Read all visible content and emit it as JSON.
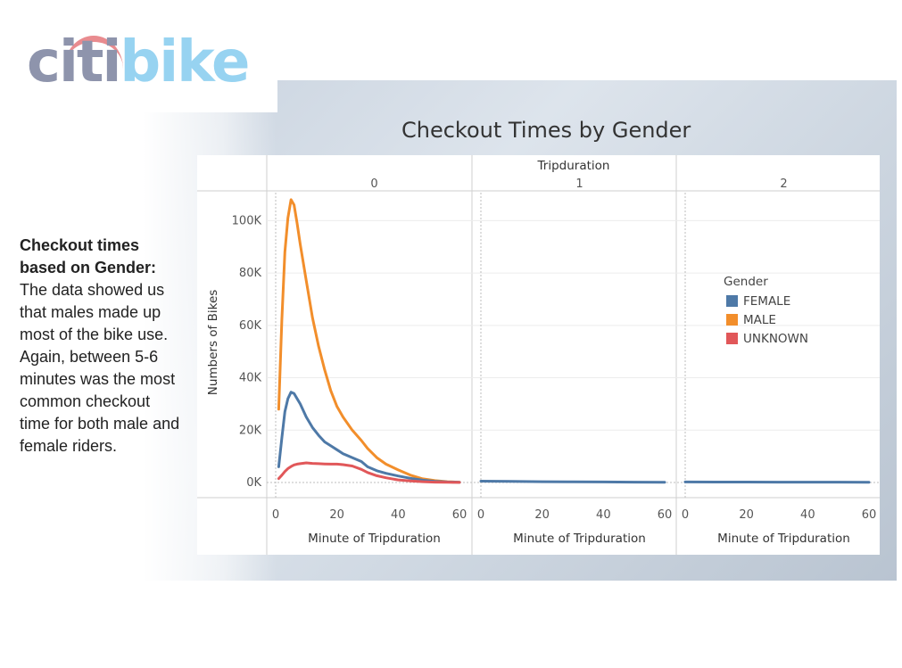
{
  "logo": {
    "part1": "citi",
    "part2": "bike"
  },
  "sidebar": {
    "heading": "Checkout times based on Gender:",
    "body": "The data showed us that males made up most of the bike use. Again, between 5-6 minutes was the most common checkout time for both male and female riders."
  },
  "colors": {
    "female": "#4e79a7",
    "male": "#f28e2b",
    "unknown": "#e15759",
    "logo_gray": "#8e94ac",
    "logo_blue": "#97d3f1",
    "logo_arc": "#e98b8f"
  },
  "chart_data": {
    "type": "line",
    "title": "Checkout Times by Gender",
    "column_header": "Tripduration",
    "panels": [
      "0",
      "1",
      "2"
    ],
    "xlabel": "Minute of Tripduration",
    "ylabel": "Numbers of Bikes",
    "xlim": [
      0,
      60
    ],
    "ylim": [
      0,
      110000
    ],
    "x_ticks": [
      "0",
      "20",
      "40",
      "60"
    ],
    "y_ticks": [
      {
        "value": 0,
        "label": "0K"
      },
      {
        "value": 20000,
        "label": "20K"
      },
      {
        "value": 40000,
        "label": "40K"
      },
      {
        "value": 60000,
        "label": "60K"
      },
      {
        "value": 80000,
        "label": "80K"
      },
      {
        "value": 100000,
        "label": "100K"
      }
    ],
    "legend": {
      "title": "Gender",
      "placement": "right",
      "entries": [
        "FEMALE",
        "MALE",
        "UNKNOWN"
      ]
    },
    "grid": true,
    "series": [
      {
        "name": "MALE",
        "color": "#f28e2b",
        "panel": 0,
        "x": [
          1,
          2,
          3,
          4,
          5,
          6,
          7,
          8,
          10,
          12,
          14,
          16,
          18,
          20,
          22,
          25,
          28,
          30,
          33,
          36,
          40,
          44,
          48,
          52,
          56,
          60
        ],
        "y": [
          28000,
          62000,
          88000,
          101000,
          108000,
          106000,
          99000,
          91000,
          77000,
          63000,
          52000,
          43000,
          35000,
          29000,
          25000,
          20000,
          16000,
          13000,
          9500,
          7000,
          4800,
          2800,
          1400,
          700,
          300,
          100
        ]
      },
      {
        "name": "FEMALE",
        "color": "#4e79a7",
        "panel": 0,
        "x": [
          1,
          2,
          3,
          4,
          5,
          6,
          7,
          8,
          10,
          12,
          14,
          16,
          18,
          20,
          22,
          25,
          28,
          30,
          33,
          36,
          40,
          44,
          48,
          52,
          56,
          60
        ],
        "y": [
          6000,
          17000,
          27000,
          32000,
          34500,
          34000,
          32000,
          30000,
          25000,
          21000,
          18000,
          15500,
          14000,
          12500,
          11000,
          9500,
          8000,
          6000,
          4500,
          3500,
          2500,
          1600,
          900,
          450,
          200,
          100
        ]
      },
      {
        "name": "UNKNOWN",
        "color": "#e15759",
        "panel": 0,
        "x": [
          1,
          2,
          3,
          4,
          5,
          6,
          7,
          8,
          10,
          12,
          14,
          16,
          18,
          20,
          22,
          25,
          28,
          30,
          33,
          36,
          40,
          44,
          48,
          52,
          56,
          60
        ],
        "y": [
          1500,
          2800,
          4200,
          5300,
          6100,
          6700,
          7000,
          7200,
          7500,
          7300,
          7200,
          7100,
          7000,
          7000,
          6800,
          6300,
          5000,
          3800,
          2600,
          1800,
          1000,
          600,
          300,
          150,
          80,
          50
        ]
      },
      {
        "name": "FEMALE",
        "color": "#4e79a7",
        "panel": 1,
        "x": [
          0,
          10,
          20,
          30,
          40,
          50,
          60
        ],
        "y": [
          500,
          400,
          300,
          250,
          200,
          150,
          100
        ]
      },
      {
        "name": "FEMALE",
        "color": "#4e79a7",
        "panel": 2,
        "x": [
          0,
          10,
          20,
          30,
          40,
          50,
          60
        ],
        "y": [
          200,
          180,
          160,
          150,
          130,
          120,
          100
        ]
      }
    ]
  }
}
